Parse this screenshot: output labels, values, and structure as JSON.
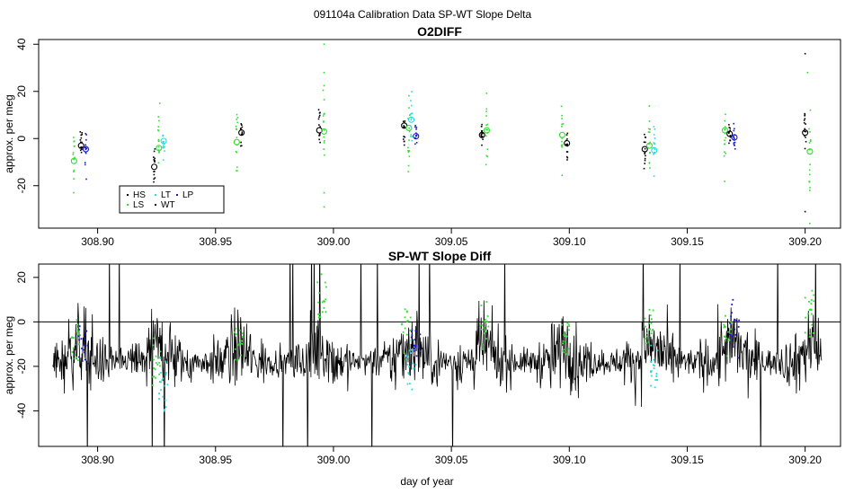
{
  "super_title": "091104a   Calibration Data SP-WT Slope Delta",
  "xlabel": "day of year",
  "colors": {
    "HS": "#000000",
    "LS": "#33dd33",
    "LT": "#22dddd",
    "WT": "#000000",
    "LP": "#1a1acc"
  },
  "chart_data": [
    {
      "type": "scatter",
      "title": "O2DIFF",
      "ylabel": "approx. per meg",
      "xlim": [
        308.875,
        309.215
      ],
      "ylim": [
        -38,
        42
      ],
      "xticks": [
        308.9,
        308.95,
        309.0,
        309.05,
        309.1,
        309.15,
        309.2
      ],
      "xtick_labels": [
        "308.90",
        "308.95",
        "309.00",
        "309.05",
        "309.10",
        "309.15",
        "309.20"
      ],
      "yticks": [
        -20,
        0,
        20,
        40
      ],
      "ytick_labels": [
        "-20",
        "0",
        "20",
        "40"
      ],
      "legend": {
        "placement": "bottom-left",
        "entries": [
          "HS",
          "LS",
          "LT",
          "WT",
          "LP"
        ]
      },
      "groups": [
        {
          "x": 308.89,
          "mean": -9.5,
          "series": "LS"
        },
        {
          "x": 308.893,
          "mean": -3,
          "series": "HS"
        },
        {
          "x": 308.895,
          "mean": -4.5,
          "series": "LP"
        },
        {
          "x": 308.924,
          "mean": -12,
          "series": "HS"
        },
        {
          "x": 308.926,
          "mean": -4,
          "series": "LS"
        },
        {
          "x": 308.928,
          "mean": -1,
          "series": "LT"
        },
        {
          "x": 308.959,
          "mean": -1.5,
          "series": "LS"
        },
        {
          "x": 308.961,
          "mean": 2.5,
          "series": "HS"
        },
        {
          "x": 308.994,
          "mean": 3.5,
          "series": "HS"
        },
        {
          "x": 308.996,
          "mean": 3,
          "series": "LS"
        },
        {
          "x": 309.03,
          "mean": 5.5,
          "series": "HS"
        },
        {
          "x": 309.032,
          "mean": 4.5,
          "series": "LS"
        },
        {
          "x": 309.033,
          "mean": 8,
          "series": "LT"
        },
        {
          "x": 309.035,
          "mean": 1,
          "series": "LP"
        },
        {
          "x": 309.063,
          "mean": 1.5,
          "series": "HS"
        },
        {
          "x": 309.065,
          "mean": 3.5,
          "series": "LS"
        },
        {
          "x": 309.097,
          "mean": 1.5,
          "series": "LS"
        },
        {
          "x": 309.099,
          "mean": -2,
          "series": "HS"
        },
        {
          "x": 309.132,
          "mean": -4.5,
          "series": "HS"
        },
        {
          "x": 309.134,
          "mean": -3,
          "series": "LS"
        },
        {
          "x": 309.136,
          "mean": -5,
          "series": "LT"
        },
        {
          "x": 309.166,
          "mean": 3.5,
          "series": "LS"
        },
        {
          "x": 309.168,
          "mean": 2,
          "series": "HS"
        },
        {
          "x": 309.17,
          "mean": 0.5,
          "series": "LP"
        },
        {
          "x": 309.2,
          "mean": 2.5,
          "series": "HS"
        },
        {
          "x": 309.202,
          "mean": -5.5,
          "series": "LS"
        }
      ]
    },
    {
      "type": "line",
      "title": "SP-WT Slope Diff",
      "ylabel": "approx. per meg",
      "xlim": [
        308.875,
        309.215
      ],
      "ylim": [
        -56,
        26
      ],
      "xticks": [
        308.9,
        308.95,
        309.0,
        309.05,
        309.1,
        309.15,
        309.2
      ],
      "xtick_labels": [
        "308.90",
        "308.95",
        "309.00",
        "309.05",
        "309.10",
        "309.15",
        "309.20"
      ],
      "yticks": [
        -40,
        -20,
        0,
        20
      ],
      "ytick_labels": [
        "-40",
        "-20",
        "0",
        "20"
      ],
      "hline": 0,
      "x_start": 308.881,
      "x_end": 309.207,
      "baseline": -18,
      "calibration_events": [
        {
          "x": 308.891,
          "level": -10,
          "series": "LS"
        },
        {
          "x": 308.894,
          "level": -10,
          "series": "LP"
        },
        {
          "x": 308.925,
          "level": -20,
          "series": "LS"
        },
        {
          "x": 308.928,
          "level": -28,
          "series": "LT"
        },
        {
          "x": 308.96,
          "level": -10,
          "series": "LS"
        },
        {
          "x": 308.995,
          "level": 8,
          "series": "LS"
        },
        {
          "x": 309.031,
          "level": -2,
          "series": "LS"
        },
        {
          "x": 309.033,
          "level": -22,
          "series": "LT"
        },
        {
          "x": 309.035,
          "level": -8,
          "series": "LP"
        },
        {
          "x": 309.064,
          "level": -2,
          "series": "LS"
        },
        {
          "x": 309.098,
          "level": -8,
          "series": "LS"
        },
        {
          "x": 309.134,
          "level": -2,
          "series": "LS"
        },
        {
          "x": 309.136,
          "level": -20,
          "series": "LT"
        },
        {
          "x": 309.167,
          "level": -2,
          "series": "LS"
        },
        {
          "x": 309.17,
          "level": -2,
          "series": "LP"
        },
        {
          "x": 309.202,
          "level": 5,
          "series": "LS"
        }
      ]
    }
  ]
}
